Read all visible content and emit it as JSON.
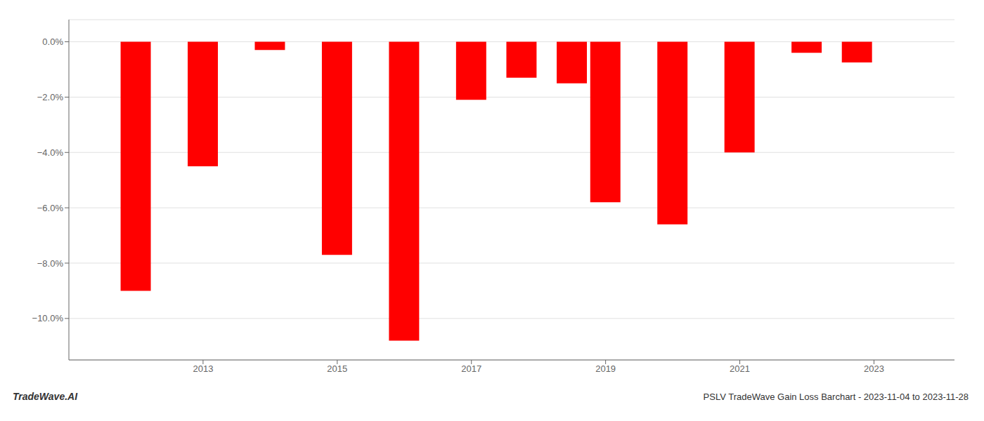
{
  "chart_data": {
    "type": "bar",
    "x": [
      2012,
      2013,
      2014,
      2015,
      2016,
      2017,
      2017.75,
      2018.5,
      2019,
      2020,
      2021,
      2022,
      2022.75
    ],
    "values": [
      -9.0,
      -4.5,
      -0.3,
      -7.7,
      -10.8,
      -2.1,
      -1.3,
      -1.5,
      -5.8,
      -6.6,
      -4.0,
      -0.4,
      -0.75
    ],
    "color": "#ff0000",
    "xlim": [
      2011.0,
      2024.2
    ],
    "xticks": [
      2013,
      2015,
      2017,
      2019,
      2021,
      2023
    ],
    "ylim": [
      -11.5,
      0.8
    ],
    "yticks": [
      {
        "value": 0.0,
        "label": "0.0%"
      },
      {
        "value": -2.0,
        "label": "−2.0%"
      },
      {
        "value": -4.0,
        "label": "−4.0%"
      },
      {
        "value": -6.0,
        "label": "−6.0%"
      },
      {
        "value": -8.0,
        "label": "−8.0%"
      },
      {
        "value": -10.0,
        "label": "−10.0%"
      }
    ],
    "grid": true,
    "annotations": [
      "TradeWave.AI",
      "PSLV TradeWave Gain Loss Barchart - 2023-11-04 to 2023-11-28"
    ]
  }
}
